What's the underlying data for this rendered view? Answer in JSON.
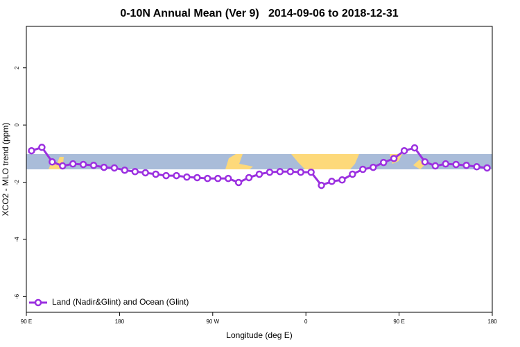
{
  "chart_data": {
    "type": "line",
    "title": "0-10N Annual Mean (Ver 9)   2014-09-06 to 2018-12-31",
    "x_label": "Longitude (deg E)",
    "y_label": "XCO2 - MLO trend (ppm)",
    "x": [
      95,
      105,
      115,
      125,
      135,
      145,
      155,
      165,
      175,
      185,
      195,
      205,
      215,
      225,
      235,
      245,
      255,
      265,
      275,
      285,
      295,
      305,
      315,
      325,
      335,
      345,
      355,
      365,
      375,
      385,
      395,
      405,
      415,
      425,
      435,
      445,
      455,
      465,
      475,
      485,
      495,
      505,
      515,
      525,
      535
    ],
    "series": [
      {
        "name": "Land (Nadir&Glint) and Ocean (Glint)",
        "color": "#9b30e0",
        "values": [
          -0.9,
          -0.78,
          -1.29,
          -1.43,
          -1.36,
          -1.38,
          -1.41,
          -1.48,
          -1.5,
          -1.58,
          -1.63,
          -1.67,
          -1.72,
          -1.77,
          -1.77,
          -1.82,
          -1.84,
          -1.87,
          -1.87,
          -1.87,
          -2.01,
          -1.84,
          -1.72,
          -1.65,
          -1.63,
          -1.63,
          -1.65,
          -1.65,
          -2.11,
          -1.97,
          -1.92,
          -1.72,
          -1.55,
          -1.48,
          -1.31,
          -1.17,
          -0.9,
          -0.8,
          -1.29,
          -1.43,
          -1.36,
          -1.38,
          -1.41,
          -1.46,
          -1.5
        ]
      }
    ],
    "xlim": [
      90,
      540
    ],
    "xticks": [
      {
        "value": 90,
        "label": "90 E"
      },
      180,
      {
        "value": 270,
        "label": "90 W"
      },
      {
        "value": 360,
        "label": "0"
      },
      {
        "value": 450,
        "label": "90 E"
      },
      {
        "value": 540,
        "label": "180"
      }
    ],
    "ylim": [
      -6.55,
      3.45
    ],
    "yticks": [
      2,
      0,
      -2,
      -4,
      -6
    ],
    "legend": "bottom-left"
  }
}
